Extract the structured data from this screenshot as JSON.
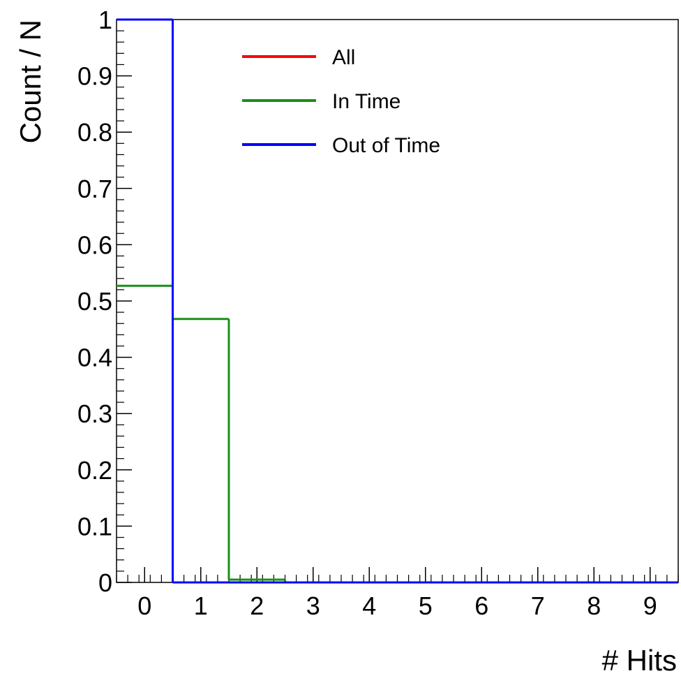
{
  "chart_data": {
    "type": "histogram",
    "xlabel": "# Hits",
    "ylabel": "Count / N",
    "xlim": [
      -0.5,
      9.5
    ],
    "ylim": [
      0,
      1
    ],
    "x_ticks": [
      "0",
      "1",
      "2",
      "3",
      "4",
      "5",
      "6",
      "7",
      "8",
      "9"
    ],
    "y_ticks": [
      "0",
      "0.1",
      "0.2",
      "0.3",
      "0.4",
      "0.5",
      "0.6",
      "0.7",
      "0.8",
      "0.9",
      "1"
    ],
    "bin_edges": [
      -0.5,
      0.5,
      1.5,
      2.5,
      3.5,
      4.5,
      5.5,
      6.5,
      7.5,
      8.5,
      9.5
    ],
    "grid": false,
    "legend_position": "top",
    "series": [
      {
        "name": "All",
        "color": "#ff0000",
        "values": [
          1.0,
          0,
          0,
          0,
          0,
          0,
          0,
          0,
          0,
          0
        ]
      },
      {
        "name": "In Time",
        "color": "#1a8f1a",
        "values": [
          0.527,
          0.468,
          0.005,
          0,
          0,
          0,
          0,
          0,
          0,
          0
        ]
      },
      {
        "name": "Out of Time",
        "color": "#0000ff",
        "values": [
          1.0,
          0,
          0,
          0,
          0,
          0,
          0,
          0,
          0,
          0
        ]
      }
    ]
  }
}
